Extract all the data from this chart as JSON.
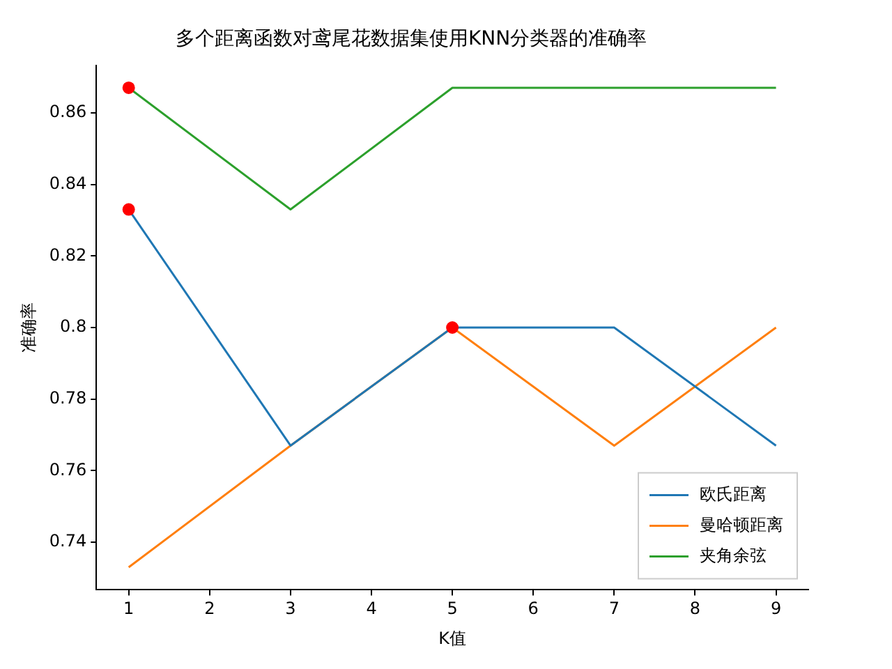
{
  "chart_data": {
    "type": "line",
    "title": "多个距离函数对鸢尾花数据集使用KNN分类器的准确率",
    "xlabel": "K值",
    "ylabel": "准确率",
    "x": [
      1,
      3,
      5,
      7,
      9
    ],
    "series": [
      {
        "name": "欧氏距离",
        "color": "#1f77b4",
        "values": [
          0.833,
          0.767,
          0.8,
          0.8,
          0.767
        ]
      },
      {
        "name": "曼哈顿距离",
        "color": "#ff7f0e",
        "values": [
          0.733,
          0.767,
          0.8,
          0.767,
          0.8
        ]
      },
      {
        "name": "夹角余弦",
        "color": "#2ca02c",
        "values": [
          0.867,
          0.833,
          0.867,
          0.867,
          0.867
        ]
      },
      {
        "type": "scatter",
        "color": "#ff0000",
        "values": [
          0.867,
          null,
          0.8,
          null,
          null
        ],
        "marker": "circle"
      },
      {
        "type": "scatter",
        "color": "#ff0000",
        "values": [
          0.833,
          null,
          null,
          null,
          null
        ],
        "marker": "circle"
      }
    ],
    "xlim": [
      0.6,
      9.4
    ],
    "xticks": [
      1,
      2,
      3,
      4,
      5,
      6,
      7,
      8,
      9
    ],
    "ylim": [
      0.7267,
      0.8733
    ],
    "yticks": [
      0.74,
      0.76,
      0.78,
      0.8,
      0.82,
      0.84,
      0.86
    ],
    "grid": false,
    "legend": "bottom right",
    "marker": "none",
    "line_style": "solid"
  }
}
